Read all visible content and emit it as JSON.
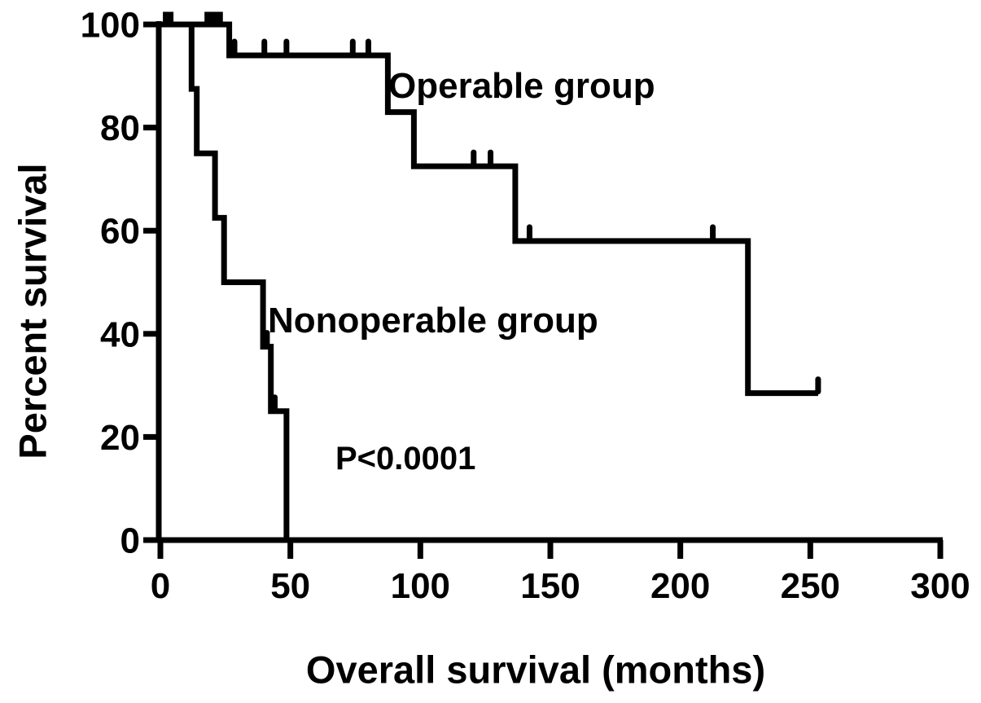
{
  "figure": {
    "background_color": "#ffffff",
    "foreground_color": "#000000"
  },
  "chart_data": {
    "type": "line",
    "subtype": "kaplan-meier-step",
    "title": "",
    "xlabel": "Overall survival (months)",
    "ylabel": "Percent survival",
    "xlim": [
      0,
      300
    ],
    "ylim": [
      0,
      100
    ],
    "xticks": [
      0,
      50,
      100,
      150,
      200,
      250,
      300
    ],
    "yticks": [
      0,
      20,
      40,
      60,
      80,
      100
    ],
    "grid": false,
    "legend_position": "inline-annotations",
    "series": [
      {
        "name": "Operable group",
        "color": "#000000",
        "points": [
          [
            0,
            100
          ],
          [
            26.5,
            100
          ],
          [
            26.5,
            94
          ],
          [
            87.5,
            94
          ],
          [
            87.5,
            83
          ],
          [
            97.5,
            83
          ],
          [
            97.5,
            72.5
          ],
          [
            136.5,
            72.5
          ],
          [
            136.5,
            58
          ],
          [
            226,
            58
          ],
          [
            226,
            28.5
          ],
          [
            253,
            28.5
          ]
        ],
        "censor_ticks": [
          [
            28.5,
            94
          ],
          [
            40,
            94
          ],
          [
            48.5,
            94
          ],
          [
            74,
            94
          ],
          [
            80,
            94
          ],
          [
            120.5,
            72.5
          ],
          [
            127,
            72.5
          ],
          [
            142,
            58
          ],
          [
            212.5,
            58
          ],
          [
            253,
            28.5
          ]
        ],
        "censor_squares": [
          [
            3,
            100
          ],
          [
            19,
            100
          ],
          [
            22,
            100
          ]
        ]
      },
      {
        "name": "Nonoperable group",
        "color": "#000000",
        "points": [
          [
            0,
            100
          ],
          [
            12,
            100
          ],
          [
            12,
            87.5
          ],
          [
            14,
            87.5
          ],
          [
            14,
            75
          ],
          [
            21,
            75
          ],
          [
            21,
            62.5
          ],
          [
            24.5,
            62.5
          ],
          [
            24.5,
            50
          ],
          [
            39.5,
            50
          ],
          [
            39.5,
            37.5
          ],
          [
            42.5,
            37.5
          ],
          [
            42.5,
            25
          ],
          [
            48.5,
            25
          ],
          [
            48.5,
            0
          ]
        ],
        "censor_ticks": [
          [
            41,
            37.5
          ],
          [
            44,
            25
          ]
        ],
        "censor_squares": []
      }
    ],
    "annotations": [
      {
        "text": "Operable group",
        "x_months": 88,
        "y_percent": 88
      },
      {
        "text": "Nonoperable group",
        "x_months": 41.5,
        "y_percent": 42.5
      },
      {
        "text": "P<0.0001",
        "x_months": 68,
        "y_percent": 16
      }
    ]
  }
}
